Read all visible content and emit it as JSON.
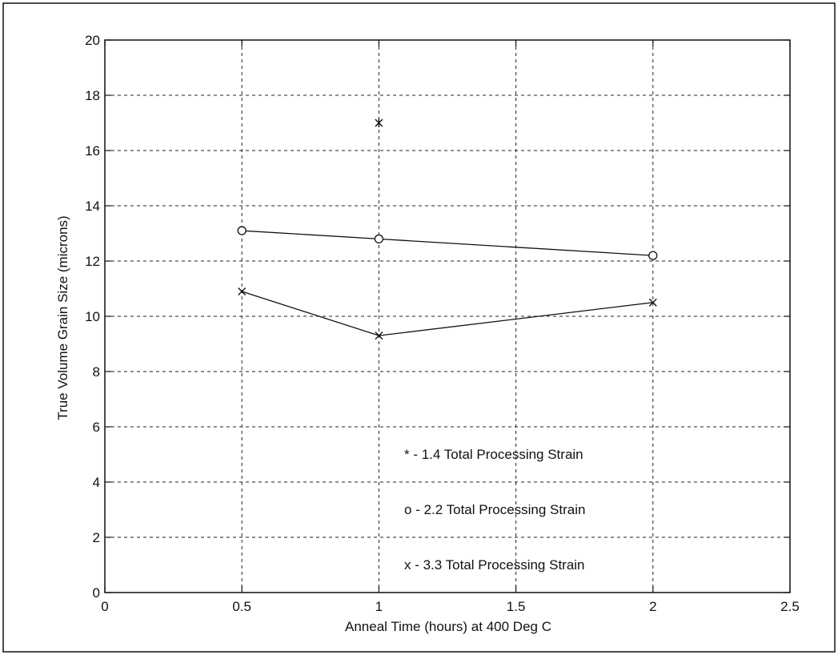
{
  "chart_data": {
    "type": "scatter",
    "title": "",
    "xlabel": "Anneal Time (hours) at 400 Deg C",
    "ylabel": "True Volume Grain Size (microns)",
    "xlim": [
      0,
      2.5
    ],
    "ylim": [
      0,
      20
    ],
    "x_ticks": [
      0,
      0.5,
      1,
      1.5,
      2,
      2.5
    ],
    "y_ticks": [
      0,
      2,
      4,
      6,
      8,
      10,
      12,
      14,
      16,
      18,
      20
    ],
    "x_tick_labels": [
      "0",
      "0.5",
      "1",
      "1.5",
      "2",
      "2.5"
    ],
    "y_tick_labels": [
      "0",
      "2",
      "4",
      "6",
      "8",
      "10",
      "12",
      "14",
      "16",
      "18",
      "20"
    ],
    "grid": true,
    "grid_style": "dashed",
    "series": [
      {
        "marker": "asterisk",
        "line": false,
        "points": [
          {
            "x": 1,
            "y": 17.0
          }
        ]
      },
      {
        "marker": "circle",
        "line": true,
        "points": [
          {
            "x": 0.5,
            "y": 13.1
          },
          {
            "x": 1,
            "y": 12.8
          },
          {
            "x": 2,
            "y": 12.2
          }
        ]
      },
      {
        "marker": "x",
        "line": true,
        "points": [
          {
            "x": 0.5,
            "y": 10.9
          },
          {
            "x": 1,
            "y": 9.3
          },
          {
            "x": 2,
            "y": 10.5
          }
        ]
      }
    ],
    "annotations": [
      "* - 1.4 Total Processing Strain",
      "o - 2.2 Total Processing Strain",
      "x - 3.3 Total Processing Strain"
    ]
  }
}
